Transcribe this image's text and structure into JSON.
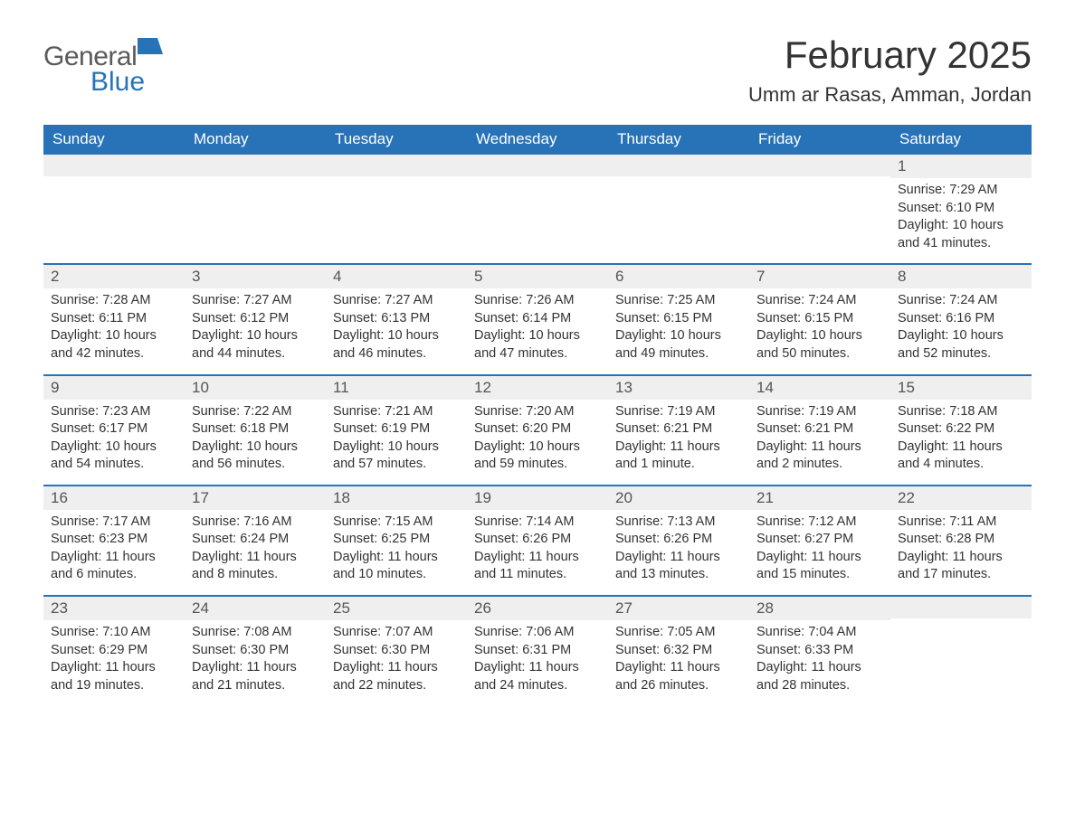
{
  "logo": {
    "general": "General",
    "blue": "Blue",
    "mark_color": "#2873b8"
  },
  "title": "February 2025",
  "subtitle": "Umm ar Rasas, Amman, Jordan",
  "header_bg": "#2873b8",
  "header_fg": "#ffffff",
  "daynum_bg": "#efefef",
  "row_border": "#2873b8",
  "dow": [
    "Sunday",
    "Monday",
    "Tuesday",
    "Wednesday",
    "Thursday",
    "Friday",
    "Saturday"
  ],
  "labels": {
    "sunrise": "Sunrise",
    "sunset": "Sunset",
    "daylight": "Daylight"
  },
  "weeks": [
    [
      {
        "empty": true
      },
      {
        "empty": true
      },
      {
        "empty": true
      },
      {
        "empty": true
      },
      {
        "empty": true
      },
      {
        "empty": true
      },
      {
        "n": "1",
        "sunrise": "7:29 AM",
        "sunset": "6:10 PM",
        "daylight": "10 hours and 41 minutes."
      }
    ],
    [
      {
        "n": "2",
        "sunrise": "7:28 AM",
        "sunset": "6:11 PM",
        "daylight": "10 hours and 42 minutes."
      },
      {
        "n": "3",
        "sunrise": "7:27 AM",
        "sunset": "6:12 PM",
        "daylight": "10 hours and 44 minutes."
      },
      {
        "n": "4",
        "sunrise": "7:27 AM",
        "sunset": "6:13 PM",
        "daylight": "10 hours and 46 minutes."
      },
      {
        "n": "5",
        "sunrise": "7:26 AM",
        "sunset": "6:14 PM",
        "daylight": "10 hours and 47 minutes."
      },
      {
        "n": "6",
        "sunrise": "7:25 AM",
        "sunset": "6:15 PM",
        "daylight": "10 hours and 49 minutes."
      },
      {
        "n": "7",
        "sunrise": "7:24 AM",
        "sunset": "6:15 PM",
        "daylight": "10 hours and 50 minutes."
      },
      {
        "n": "8",
        "sunrise": "7:24 AM",
        "sunset": "6:16 PM",
        "daylight": "10 hours and 52 minutes."
      }
    ],
    [
      {
        "n": "9",
        "sunrise": "7:23 AM",
        "sunset": "6:17 PM",
        "daylight": "10 hours and 54 minutes."
      },
      {
        "n": "10",
        "sunrise": "7:22 AM",
        "sunset": "6:18 PM",
        "daylight": "10 hours and 56 minutes."
      },
      {
        "n": "11",
        "sunrise": "7:21 AM",
        "sunset": "6:19 PM",
        "daylight": "10 hours and 57 minutes."
      },
      {
        "n": "12",
        "sunrise": "7:20 AM",
        "sunset": "6:20 PM",
        "daylight": "10 hours and 59 minutes."
      },
      {
        "n": "13",
        "sunrise": "7:19 AM",
        "sunset": "6:21 PM",
        "daylight": "11 hours and 1 minute."
      },
      {
        "n": "14",
        "sunrise": "7:19 AM",
        "sunset": "6:21 PM",
        "daylight": "11 hours and 2 minutes."
      },
      {
        "n": "15",
        "sunrise": "7:18 AM",
        "sunset": "6:22 PM",
        "daylight": "11 hours and 4 minutes."
      }
    ],
    [
      {
        "n": "16",
        "sunrise": "7:17 AM",
        "sunset": "6:23 PM",
        "daylight": "11 hours and 6 minutes."
      },
      {
        "n": "17",
        "sunrise": "7:16 AM",
        "sunset": "6:24 PM",
        "daylight": "11 hours and 8 minutes."
      },
      {
        "n": "18",
        "sunrise": "7:15 AM",
        "sunset": "6:25 PM",
        "daylight": "11 hours and 10 minutes."
      },
      {
        "n": "19",
        "sunrise": "7:14 AM",
        "sunset": "6:26 PM",
        "daylight": "11 hours and 11 minutes."
      },
      {
        "n": "20",
        "sunrise": "7:13 AM",
        "sunset": "6:26 PM",
        "daylight": "11 hours and 13 minutes."
      },
      {
        "n": "21",
        "sunrise": "7:12 AM",
        "sunset": "6:27 PM",
        "daylight": "11 hours and 15 minutes."
      },
      {
        "n": "22",
        "sunrise": "7:11 AM",
        "sunset": "6:28 PM",
        "daylight": "11 hours and 17 minutes."
      }
    ],
    [
      {
        "n": "23",
        "sunrise": "7:10 AM",
        "sunset": "6:29 PM",
        "daylight": "11 hours and 19 minutes."
      },
      {
        "n": "24",
        "sunrise": "7:08 AM",
        "sunset": "6:30 PM",
        "daylight": "11 hours and 21 minutes."
      },
      {
        "n": "25",
        "sunrise": "7:07 AM",
        "sunset": "6:30 PM",
        "daylight": "11 hours and 22 minutes."
      },
      {
        "n": "26",
        "sunrise": "7:06 AM",
        "sunset": "6:31 PM",
        "daylight": "11 hours and 24 minutes."
      },
      {
        "n": "27",
        "sunrise": "7:05 AM",
        "sunset": "6:32 PM",
        "daylight": "11 hours and 26 minutes."
      },
      {
        "n": "28",
        "sunrise": "7:04 AM",
        "sunset": "6:33 PM",
        "daylight": "11 hours and 28 minutes."
      },
      {
        "empty": true
      }
    ]
  ]
}
